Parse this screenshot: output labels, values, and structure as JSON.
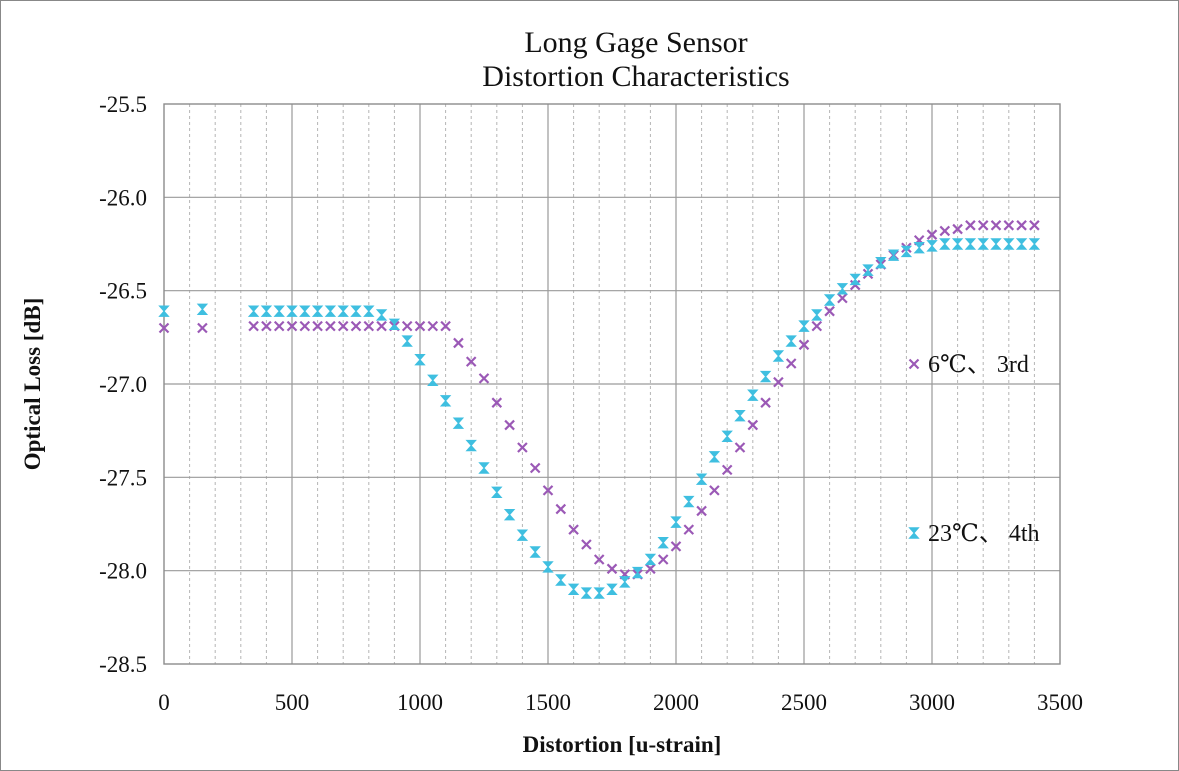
{
  "chart_data": {
    "type": "scatter",
    "title": "Long Gage Sensor\nDistortion Characteristics",
    "xlabel": "Distortion [u-strain]",
    "ylabel": "Optical Loss [dB]",
    "xlim": [
      0,
      3500
    ],
    "ylim": [
      -28.5,
      -25.5
    ],
    "x_ticks": [
      0,
      500,
      1000,
      1500,
      2000,
      2500,
      3000,
      3500
    ],
    "y_ticks": [
      -25.5,
      -26.0,
      -26.5,
      -27.0,
      -27.5,
      -28.0,
      -28.5
    ],
    "x_tick_labels": [
      "0",
      "500",
      "1000",
      "1500",
      "2000",
      "2500",
      "3000",
      "3500"
    ],
    "y_tick_labels": [
      "-25.5",
      "-26.0",
      "-26.5",
      "-27.0",
      "-27.5",
      "-28.0",
      "-28.5"
    ],
    "grid": {
      "major": true,
      "minor_vertical": true
    },
    "legend_position": "right, inside plot",
    "series": [
      {
        "name": "6℃、 3rd",
        "marker": "x",
        "color": "#9B59B6",
        "points": [
          [
            0,
            -26.7
          ],
          [
            150,
            -26.7
          ],
          [
            350,
            -26.69
          ],
          [
            400,
            -26.69
          ],
          [
            450,
            -26.69
          ],
          [
            500,
            -26.69
          ],
          [
            550,
            -26.69
          ],
          [
            600,
            -26.69
          ],
          [
            650,
            -26.69
          ],
          [
            700,
            -26.69
          ],
          [
            750,
            -26.69
          ],
          [
            800,
            -26.69
          ],
          [
            850,
            -26.69
          ],
          [
            900,
            -26.69
          ],
          [
            950,
            -26.69
          ],
          [
            1000,
            -26.69
          ],
          [
            1050,
            -26.69
          ],
          [
            1100,
            -26.69
          ],
          [
            1150,
            -26.78
          ],
          [
            1200,
            -26.88
          ],
          [
            1250,
            -26.97
          ],
          [
            1300,
            -27.1
          ],
          [
            1350,
            -27.22
          ],
          [
            1400,
            -27.34
          ],
          [
            1450,
            -27.45
          ],
          [
            1500,
            -27.57
          ],
          [
            1550,
            -27.67
          ],
          [
            1600,
            -27.78
          ],
          [
            1650,
            -27.86
          ],
          [
            1700,
            -27.94
          ],
          [
            1750,
            -27.99
          ],
          [
            1800,
            -28.02
          ],
          [
            1850,
            -28.02
          ],
          [
            1900,
            -27.99
          ],
          [
            1950,
            -27.94
          ],
          [
            2000,
            -27.87
          ],
          [
            2050,
            -27.78
          ],
          [
            2100,
            -27.68
          ],
          [
            2150,
            -27.57
          ],
          [
            2200,
            -27.46
          ],
          [
            2250,
            -27.34
          ],
          [
            2300,
            -27.22
          ],
          [
            2350,
            -27.1
          ],
          [
            2400,
            -26.99
          ],
          [
            2450,
            -26.89
          ],
          [
            2500,
            -26.79
          ],
          [
            2550,
            -26.69
          ],
          [
            2600,
            -26.61
          ],
          [
            2650,
            -26.54
          ],
          [
            2700,
            -26.47
          ],
          [
            2750,
            -26.41
          ],
          [
            2800,
            -26.36
          ],
          [
            2850,
            -26.31
          ],
          [
            2900,
            -26.27
          ],
          [
            2950,
            -26.23
          ],
          [
            3000,
            -26.2
          ],
          [
            3050,
            -26.18
          ],
          [
            3100,
            -26.17
          ],
          [
            3150,
            -26.15
          ],
          [
            3200,
            -26.15
          ],
          [
            3250,
            -26.15
          ],
          [
            3300,
            -26.15
          ],
          [
            3350,
            -26.15
          ],
          [
            3400,
            -26.15
          ]
        ]
      },
      {
        "name": "23℃、 4th",
        "marker": "hourglass",
        "color": "#3FBFE0",
        "points": [
          [
            0,
            -26.61
          ],
          [
            150,
            -26.6
          ],
          [
            350,
            -26.61
          ],
          [
            400,
            -26.61
          ],
          [
            450,
            -26.61
          ],
          [
            500,
            -26.61
          ],
          [
            550,
            -26.61
          ],
          [
            600,
            -26.61
          ],
          [
            650,
            -26.61
          ],
          [
            700,
            -26.61
          ],
          [
            750,
            -26.61
          ],
          [
            800,
            -26.61
          ],
          [
            850,
            -26.63
          ],
          [
            900,
            -26.68
          ],
          [
            950,
            -26.77
          ],
          [
            1000,
            -26.87
          ],
          [
            1050,
            -26.98
          ],
          [
            1100,
            -27.09
          ],
          [
            1150,
            -27.21
          ],
          [
            1200,
            -27.33
          ],
          [
            1250,
            -27.45
          ],
          [
            1300,
            -27.58
          ],
          [
            1350,
            -27.7
          ],
          [
            1400,
            -27.81
          ],
          [
            1450,
            -27.9
          ],
          [
            1500,
            -27.98
          ],
          [
            1550,
            -28.05
          ],
          [
            1600,
            -28.1
          ],
          [
            1650,
            -28.12
          ],
          [
            1700,
            -28.12
          ],
          [
            1750,
            -28.1
          ],
          [
            1800,
            -28.06
          ],
          [
            1850,
            -28.01
          ],
          [
            1900,
            -27.94
          ],
          [
            1950,
            -27.85
          ],
          [
            2000,
            -27.74
          ],
          [
            2050,
            -27.63
          ],
          [
            2100,
            -27.51
          ],
          [
            2150,
            -27.39
          ],
          [
            2200,
            -27.28
          ],
          [
            2250,
            -27.17
          ],
          [
            2300,
            -27.06
          ],
          [
            2350,
            -26.96
          ],
          [
            2400,
            -26.85
          ],
          [
            2450,
            -26.77
          ],
          [
            2500,
            -26.69
          ],
          [
            2550,
            -26.63
          ],
          [
            2600,
            -26.55
          ],
          [
            2650,
            -26.49
          ],
          [
            2700,
            -26.44
          ],
          [
            2750,
            -26.39
          ],
          [
            2800,
            -26.35
          ],
          [
            2850,
            -26.31
          ],
          [
            2900,
            -26.29
          ],
          [
            2950,
            -26.27
          ],
          [
            3000,
            -26.26
          ],
          [
            3050,
            -26.25
          ],
          [
            3100,
            -26.25
          ],
          [
            3150,
            -26.25
          ],
          [
            3200,
            -26.25
          ],
          [
            3250,
            -26.25
          ],
          [
            3300,
            -26.25
          ],
          [
            3350,
            -26.25
          ],
          [
            3400,
            -26.25
          ]
        ]
      }
    ]
  }
}
